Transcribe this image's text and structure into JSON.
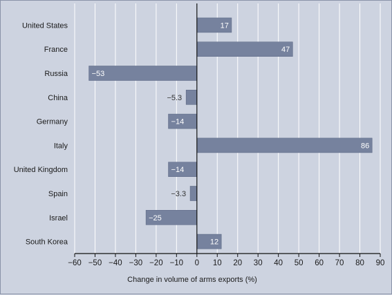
{
  "chart_data": {
    "type": "bar",
    "orientation": "horizontal",
    "categories": [
      "United States",
      "France",
      "Russia",
      "China",
      "Germany",
      "Italy",
      "United Kingdom",
      "Spain",
      "Israel",
      "South Korea"
    ],
    "values": [
      17,
      47,
      -53,
      -5.3,
      -14,
      86,
      -14,
      -3.3,
      -25,
      12
    ],
    "value_labels": [
      "17",
      "47",
      "−53",
      "−5.3",
      "−14",
      "86",
      "−14",
      "−3.3",
      "−25",
      "12"
    ],
    "xlabel": "Change in volume of arms exports (%)",
    "xlim": [
      -60,
      90
    ],
    "xticks": [
      -60,
      -50,
      -40,
      -30,
      -20,
      -10,
      0,
      10,
      20,
      30,
      40,
      50,
      60,
      70,
      80,
      90
    ],
    "xtick_labels": [
      "−60",
      "−50",
      "−40",
      "−30",
      "−20",
      "−10",
      "0",
      "10",
      "20",
      "30",
      "40",
      "50",
      "60",
      "70",
      "80",
      "90"
    ],
    "grid": "vertical",
    "colors": {
      "bar": "#76829e",
      "bar_edge": "#5e6a86",
      "background": "#cdd3e0",
      "grid": "#ffffff",
      "axis": "#111111"
    }
  }
}
